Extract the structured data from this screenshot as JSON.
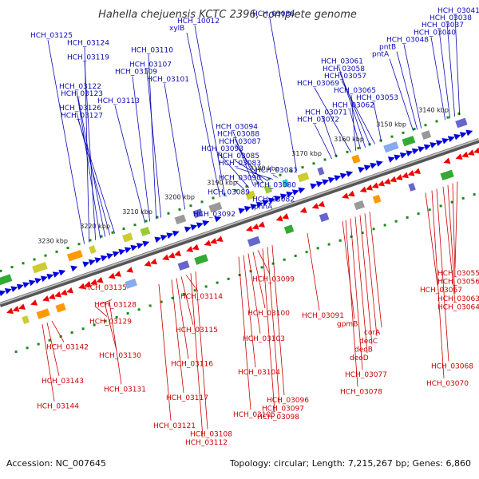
{
  "title": "Hahella chejuensis KCTC 2396, complete genome",
  "footer": {
    "accession": "Accession: NC_007645",
    "info": "Topology: circular; Length: 7,215,267 bp; Genes: 6,860"
  },
  "colors": {
    "top_label": "#0a0ab4",
    "bottom_label": "#cc0000",
    "backbone": "#777777",
    "plus_gene": "#0000dd",
    "minus_gene": "#ee0000",
    "dot": "#1a8a1a"
  },
  "kbp_ticks": [
    "3140 kbp",
    "3150 kbp",
    "3160 kbp",
    "3170 kbp",
    "3180 kbp",
    "3190 kbp",
    "3200 kbp",
    "3210 kbp",
    "3220 kbp",
    "3230 kbp"
  ],
  "top_labels": [
    {
      "text": "HCH_03041",
      "anchor": 588
    },
    {
      "text": "HCH_03038",
      "anchor": 582
    },
    {
      "text": "HCH_03037",
      "anchor": 576
    },
    {
      "text": "HCH_03040",
      "anchor": 570
    },
    {
      "text": "HCH_03048",
      "anchor": 540
    },
    {
      "text": "pntB",
      "anchor": 535
    },
    {
      "text": "pntA",
      "anchor": 530
    },
    {
      "text": "HCH_03061",
      "anchor": 470
    },
    {
      "text": "HCH_03058",
      "anchor": 476
    },
    {
      "text": "HCH_03057",
      "anchor": 482
    },
    {
      "text": "HCH_03069",
      "anchor": 452
    },
    {
      "text": "HCH_03065",
      "anchor": 458
    },
    {
      "text": "HCH_03053",
      "anchor": 490
    },
    {
      "text": "HCH_03062",
      "anchor": 464
    },
    {
      "text": "HCH_03071",
      "anchor": 434
    },
    {
      "text": "HCH_03072",
      "anchor": 428
    },
    {
      "text": "HCH_03094",
      "anchor": 330
    },
    {
      "text": "HCH_03088",
      "anchor": 336
    },
    {
      "text": "HCH_03087",
      "anchor": 342
    },
    {
      "text": "HCH_03093",
      "anchor": 324
    },
    {
      "text": "HCH_03085",
      "anchor": 348
    },
    {
      "text": "HCH_03083",
      "anchor": 354
    },
    {
      "text": "HCH_03081",
      "anchor": 360
    },
    {
      "text": "HCH_03090",
      "anchor": 318
    },
    {
      "text": "HCH_03080",
      "anchor": 366
    },
    {
      "text": "HCH_03089",
      "anchor": 312
    },
    {
      "text": "HCH_03082",
      "anchor": 372
    },
    {
      "text": "phhA",
      "anchor": 378
    },
    {
      "text": "HCH_03092",
      "anchor": 306
    },
    {
      "text": "HCH_03086",
      "anchor": 384
    },
    {
      "text": "HCH_10012",
      "anchor": 294
    },
    {
      "text": "xylB",
      "anchor": 288
    },
    {
      "text": "HCH_03125",
      "anchor": 118
    },
    {
      "text": "HCH_03124",
      "anchor": 124
    },
    {
      "text": "HCH_03110",
      "anchor": 208
    },
    {
      "text": "HCH_03119",
      "anchor": 132
    },
    {
      "text": "HCH_03107",
      "anchor": 214
    },
    {
      "text": "HCH_03109",
      "anchor": 200
    },
    {
      "text": "HCH_03101",
      "anchor": 244
    },
    {
      "text": "HCH_03122",
      "anchor": 138
    },
    {
      "text": "HCH_03123",
      "anchor": 144
    },
    {
      "text": "HCH_03113",
      "anchor": 194
    },
    {
      "text": "HCH_03126",
      "anchor": 150
    },
    {
      "text": "HCH_03127",
      "anchor": 156
    }
  ],
  "bottom_labels": [
    {
      "text": "HCH_03055",
      "anchor": 560
    },
    {
      "text": "HCH_03056",
      "anchor": 554
    },
    {
      "text": "HCH_03067",
      "anchor": 520
    },
    {
      "text": "HCH_03063",
      "anchor": 548
    },
    {
      "text": "HCH_03064",
      "anchor": 542
    },
    {
      "text": "HCH_03091",
      "anchor": 372
    },
    {
      "text": "gpmB",
      "anchor": 416
    },
    {
      "text": "corA",
      "anchor": 450
    },
    {
      "text": "deoC",
      "anchor": 444
    },
    {
      "text": "deoB",
      "anchor": 438
    },
    {
      "text": "deoD",
      "anchor": 432
    },
    {
      "text": "HCH_03068",
      "anchor": 534
    },
    {
      "text": "HCH_03077",
      "anchor": 426
    },
    {
      "text": "HCH_03070",
      "anchor": 528
    },
    {
      "text": "HCH_03078",
      "anchor": 420
    },
    {
      "text": "HCH_03096",
      "anchor": 328
    },
    {
      "text": "HCH_03097",
      "anchor": 322
    },
    {
      "text": "HCH_03098",
      "anchor": 316
    },
    {
      "text": "HCH_03121",
      "anchor": 186
    },
    {
      "text": "HCH_03108",
      "anchor": 232
    },
    {
      "text": "HCH_03112",
      "anchor": 226
    },
    {
      "text": "HCH_03099",
      "anchor": 310
    },
    {
      "text": "HCH_03135",
      "anchor": 100
    },
    {
      "text": "HCH_03114",
      "anchor": 220
    },
    {
      "text": "HCH_03128",
      "anchor": 112
    },
    {
      "text": "HCH_03100",
      "anchor": 304
    },
    {
      "text": "HCH_03129",
      "anchor": 106
    },
    {
      "text": "HCH_03115",
      "anchor": 214
    },
    {
      "text": "HCH_03103",
      "anchor": 298
    },
    {
      "text": "HCH_03142",
      "anchor": 52
    },
    {
      "text": "HCH_03130",
      "anchor": 118
    },
    {
      "text": "HCH_03116",
      "anchor": 208
    },
    {
      "text": "HCH_03104",
      "anchor": 292
    },
    {
      "text": "HCH_03143",
      "anchor": 46
    },
    {
      "text": "HCH_03131",
      "anchor": 124
    },
    {
      "text": "HCH_03117",
      "anchor": 202
    },
    {
      "text": "HCH_03144",
      "anchor": 40
    },
    {
      "text": "HCH_03105",
      "anchor": 286
    }
  ]
}
